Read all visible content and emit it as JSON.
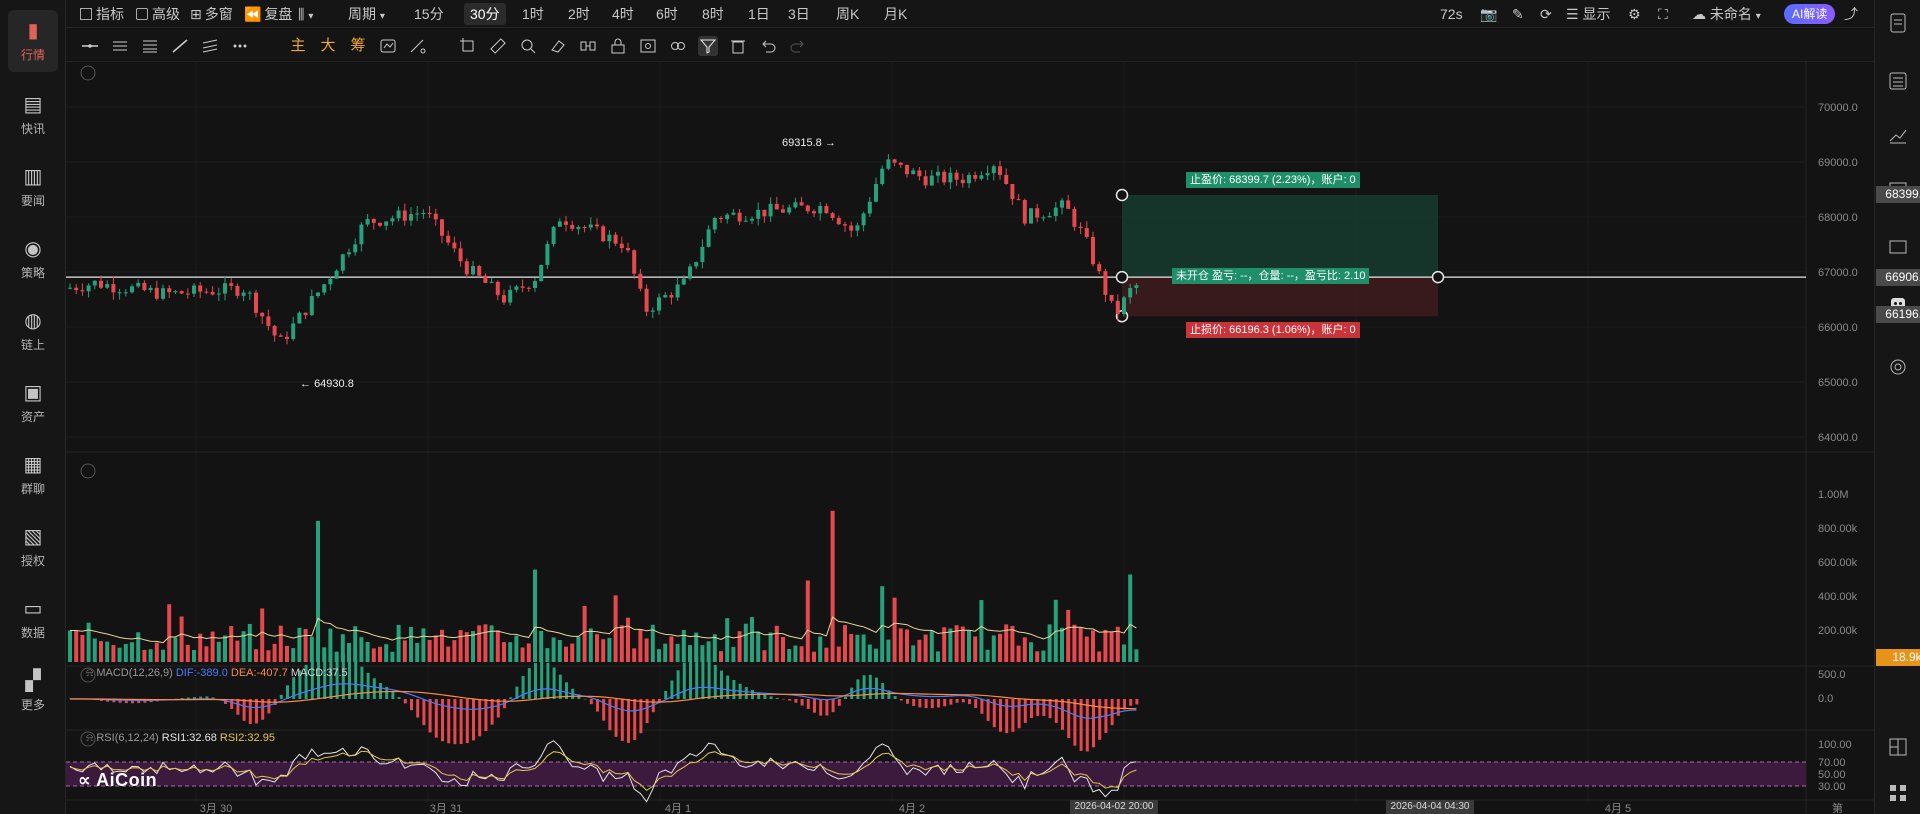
{
  "topbar": {
    "indicators": "指标",
    "advanced": "高级",
    "multi_window": "多窗",
    "replay": "复盘",
    "period": "周期",
    "intervals": [
      "15分",
      "30分",
      "1时",
      "2时",
      "4时",
      "6时",
      "8时",
      "1日",
      "3日",
      "周K",
      "月K"
    ],
    "selected_interval": "30分",
    "countdown": "72s",
    "display": "显示",
    "layout_name": "未命名",
    "ai_button": "AI解读"
  },
  "toolbar": {
    "main": "主",
    "big": "大",
    "chips": "筹"
  },
  "sidebar": {
    "items": [
      {
        "label": "行情",
        "icon": "bar-chart-icon",
        "active": true
      },
      {
        "label": "快讯",
        "icon": "news-flash-icon"
      },
      {
        "label": "要闻",
        "icon": "document-icon"
      },
      {
        "label": "策略",
        "icon": "robot-icon"
      },
      {
        "label": "链上",
        "icon": "chain-icon"
      },
      {
        "label": "资产",
        "icon": "wallet-icon"
      },
      {
        "label": "群聊",
        "icon": "chat-icon"
      },
      {
        "label": "授权",
        "icon": "key-icon"
      },
      {
        "label": "数据",
        "icon": "monitor-icon"
      },
      {
        "label": "更多",
        "icon": "grid-icon"
      }
    ]
  },
  "chart": {
    "price_axis": [
      "70000.0",
      "69000.0",
      "68000.0",
      "67000.0",
      "66000.0",
      "65000.0",
      "64000.0"
    ],
    "high_marker": "69315.8",
    "low_marker": "64930.8",
    "take_profit_tag": "68399.7",
    "entry_tag": "66906.5",
    "stop_loss_tag": "66196.3",
    "take_profit_label": "止盈价: 68399.7 (2.23%)，账户: 0",
    "entry_label": "未开仓 盈亏: --，仓量: --，盈亏比: 2.10",
    "stop_loss_label": "止损价: 66196.3 (1.06%)，账户: 0",
    "volume_axis": [
      "1.00M",
      "800.00k",
      "600.00k",
      "400.00k",
      "200.00k"
    ],
    "volume_tag": "18.9k",
    "macd": {
      "name": "MACD(12,26,9)",
      "dif": "DIF:-389.0",
      "dea": "DEA:-407.7",
      "macd": "MACD:37.5",
      "axis": [
        "500.0",
        "0.0"
      ]
    },
    "rsi": {
      "name": "RSI(6,12,24)",
      "rsi1": "RSI1:32.68",
      "rsi2": "RSI2:32.95",
      "axis": [
        "100.00",
        "70.00",
        "50.00",
        "30.00"
      ]
    },
    "logo": "AiCoin",
    "x_labels": [
      "3月 30",
      "3月 31",
      "4月 1",
      "4月 2",
      "4月 5"
    ],
    "x_highlight_left": "2026-04-02 20:00",
    "x_highlight_right": "2026-04-04 04:30",
    "x_week": "第"
  },
  "colors": {
    "up": "#26a17b",
    "down": "#e5484d",
    "bg": "#131313",
    "accent": "#f0a830",
    "ai": "#6b7cff"
  }
}
